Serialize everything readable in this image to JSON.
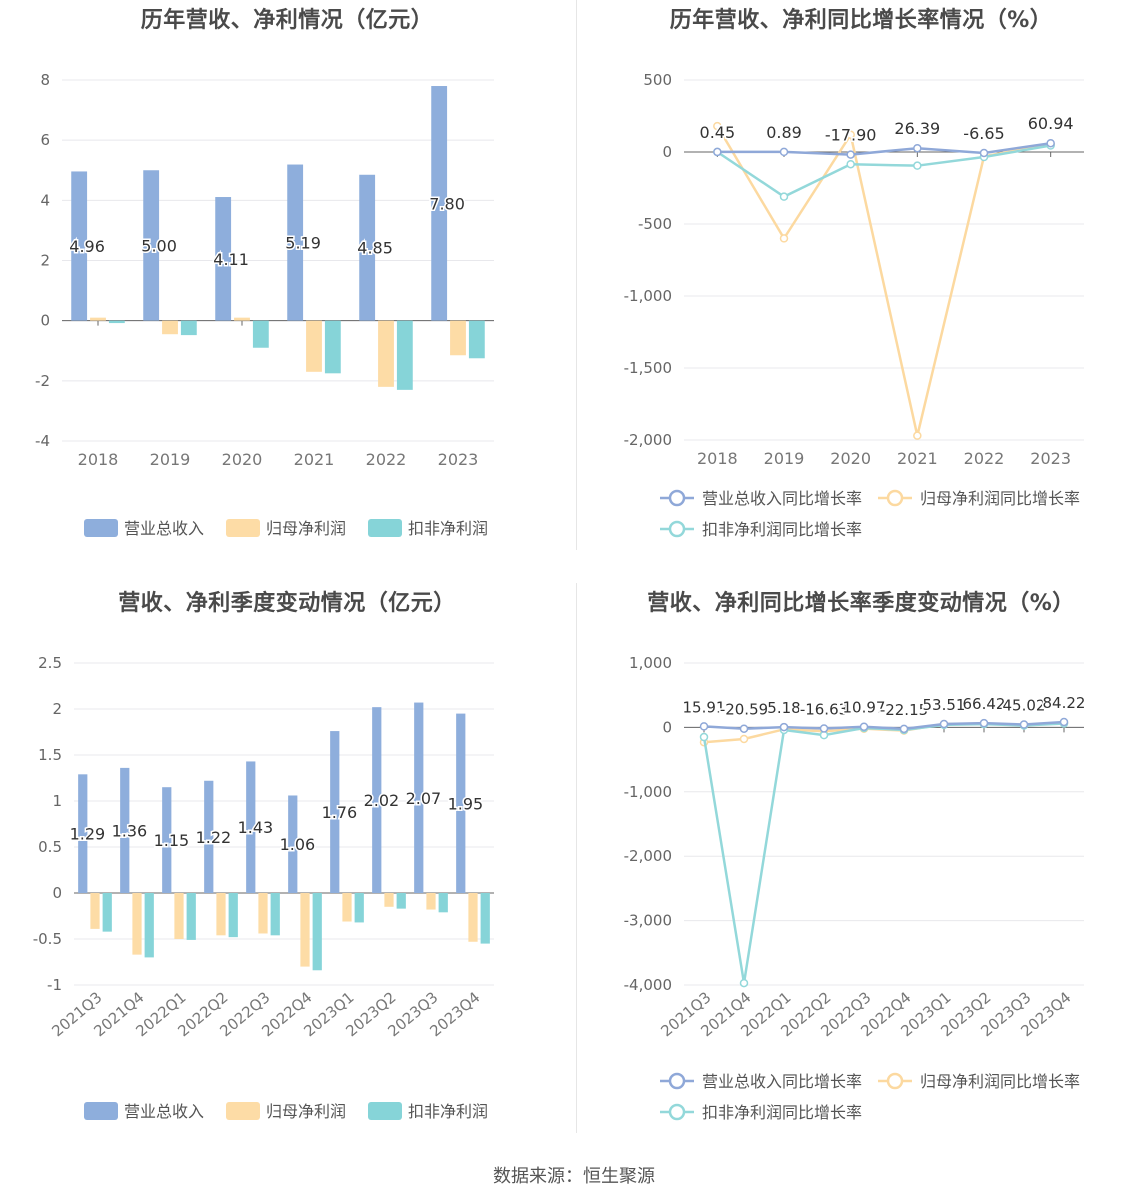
{
  "source": "数据来源：恒生聚源",
  "colors": {
    "revenue": "#8eaedc",
    "parent": "#fddca6",
    "deducted": "#86d4d8",
    "revenue_line": "#8fa8d8",
    "parent_line": "#fcd9a0",
    "deducted_line": "#93d8da"
  },
  "chart_data": [
    {
      "id": "annual_values",
      "type": "bar",
      "title": "历年营收、净利情况（亿元）",
      "categories": [
        "2018",
        "2019",
        "2020",
        "2021",
        "2022",
        "2023"
      ],
      "ylim": [
        -4,
        8
      ],
      "yticks": [
        -4,
        -2,
        0,
        2,
        4,
        6,
        8
      ],
      "series": [
        {
          "name": "营业总收入",
          "values": [
            4.96,
            5.0,
            4.11,
            5.19,
            4.85,
            7.8
          ],
          "labels": [
            "4.96",
            "5.00",
            "4.11",
            "5.19",
            "4.85",
            "7.80"
          ]
        },
        {
          "name": "归母净利润",
          "values": [
            0.1,
            -0.45,
            0.1,
            -1.7,
            -2.2,
            -1.15
          ]
        },
        {
          "name": "扣非净利润",
          "values": [
            -0.08,
            -0.48,
            -0.9,
            -1.75,
            -2.3,
            -1.25
          ]
        }
      ],
      "legend_position": "bottom"
    },
    {
      "id": "annual_growth",
      "type": "line",
      "title": "历年营收、净利同比增长率情况（%）",
      "categories": [
        "2018",
        "2019",
        "2020",
        "2021",
        "2022",
        "2023"
      ],
      "ylim": [
        -2000,
        500
      ],
      "yticks": [
        500,
        0,
        -500,
        -1000,
        -1500,
        -2000
      ],
      "ytick_labels": [
        "500",
        "0",
        "-500",
        "-1,000",
        "-1,500",
        "-2,000"
      ],
      "series": [
        {
          "name": "营业总收入同比增长率",
          "values": [
            0.45,
            0.89,
            -17.9,
            26.39,
            -6.65,
            60.94
          ],
          "labels": [
            "0.45",
            "0.89",
            "-17.90",
            "26.39",
            "-6.65",
            "60.94"
          ]
        },
        {
          "name": "归母净利润同比增长率",
          "values": [
            180,
            -600,
            120,
            -1970,
            -30,
            55
          ]
        },
        {
          "name": "扣非净利润同比增长率",
          "values": [
            0,
            -310,
            -85,
            -95,
            -35,
            45
          ]
        }
      ],
      "legend_position": "bottom"
    },
    {
      "id": "quarter_values",
      "type": "bar",
      "title": "营收、净利季度变动情况（亿元）",
      "categories": [
        "2021Q3",
        "2021Q4",
        "2022Q1",
        "2022Q2",
        "2022Q3",
        "2022Q4",
        "2023Q1",
        "2023Q2",
        "2023Q3",
        "2023Q4"
      ],
      "ylim": [
        -1,
        2.5
      ],
      "yticks": [
        -1,
        -0.5,
        0,
        0.5,
        1,
        1.5,
        2,
        2.5
      ],
      "series": [
        {
          "name": "营业总收入",
          "values": [
            1.29,
            1.36,
            1.15,
            1.22,
            1.43,
            1.06,
            1.76,
            2.02,
            2.07,
            1.95
          ],
          "labels": [
            "1.29",
            "1.36",
            "1.15",
            "1.22",
            "1.43",
            "1.06",
            "1.76",
            "2.02",
            "2.07",
            "1.95"
          ]
        },
        {
          "name": "归母净利润",
          "values": [
            -0.39,
            -0.67,
            -0.5,
            -0.46,
            -0.44,
            -0.8,
            -0.31,
            -0.15,
            -0.18,
            -0.53
          ]
        },
        {
          "name": "扣非净利润",
          "values": [
            -0.42,
            -0.7,
            -0.51,
            -0.48,
            -0.46,
            -0.84,
            -0.32,
            -0.17,
            -0.21,
            -0.55
          ]
        }
      ],
      "legend_position": "bottom"
    },
    {
      "id": "quarter_growth",
      "type": "line",
      "title": "营收、净利同比增长率季度变动情况（%）",
      "categories": [
        "2021Q3",
        "2021Q4",
        "2022Q1",
        "2022Q2",
        "2022Q3",
        "2022Q4",
        "2023Q1",
        "2023Q2",
        "2023Q3",
        "2023Q4"
      ],
      "ylim": [
        -4000,
        1000
      ],
      "yticks": [
        1000,
        0,
        -1000,
        -2000,
        -3000,
        -4000
      ],
      "ytick_labels": [
        "1,000",
        "0",
        "-1,000",
        "-2,000",
        "-3,000",
        "-4,000"
      ],
      "series": [
        {
          "name": "营业总收入同比增长率",
          "values": [
            15.91,
            -20.59,
            5.18,
            -16.63,
            10.97,
            -22.15,
            53.51,
            66.42,
            45.02,
            84.22
          ],
          "labels": [
            "15.91",
            "-20.59",
            "5.18",
            "-16.63",
            "10.97",
            "-22.15",
            "53.51",
            "66.42",
            "45.02",
            "84.22"
          ]
        },
        {
          "name": "归母净利润同比增长率",
          "values": [
            -230,
            -180,
            -30,
            -60,
            -20,
            -50,
            50,
            60,
            40,
            70
          ]
        },
        {
          "name": "扣非净利润同比增长率",
          "values": [
            -150,
            -3970,
            -40,
            -120,
            -10,
            -40,
            40,
            50,
            30,
            60
          ]
        }
      ],
      "legend_position": "bottom"
    }
  ]
}
